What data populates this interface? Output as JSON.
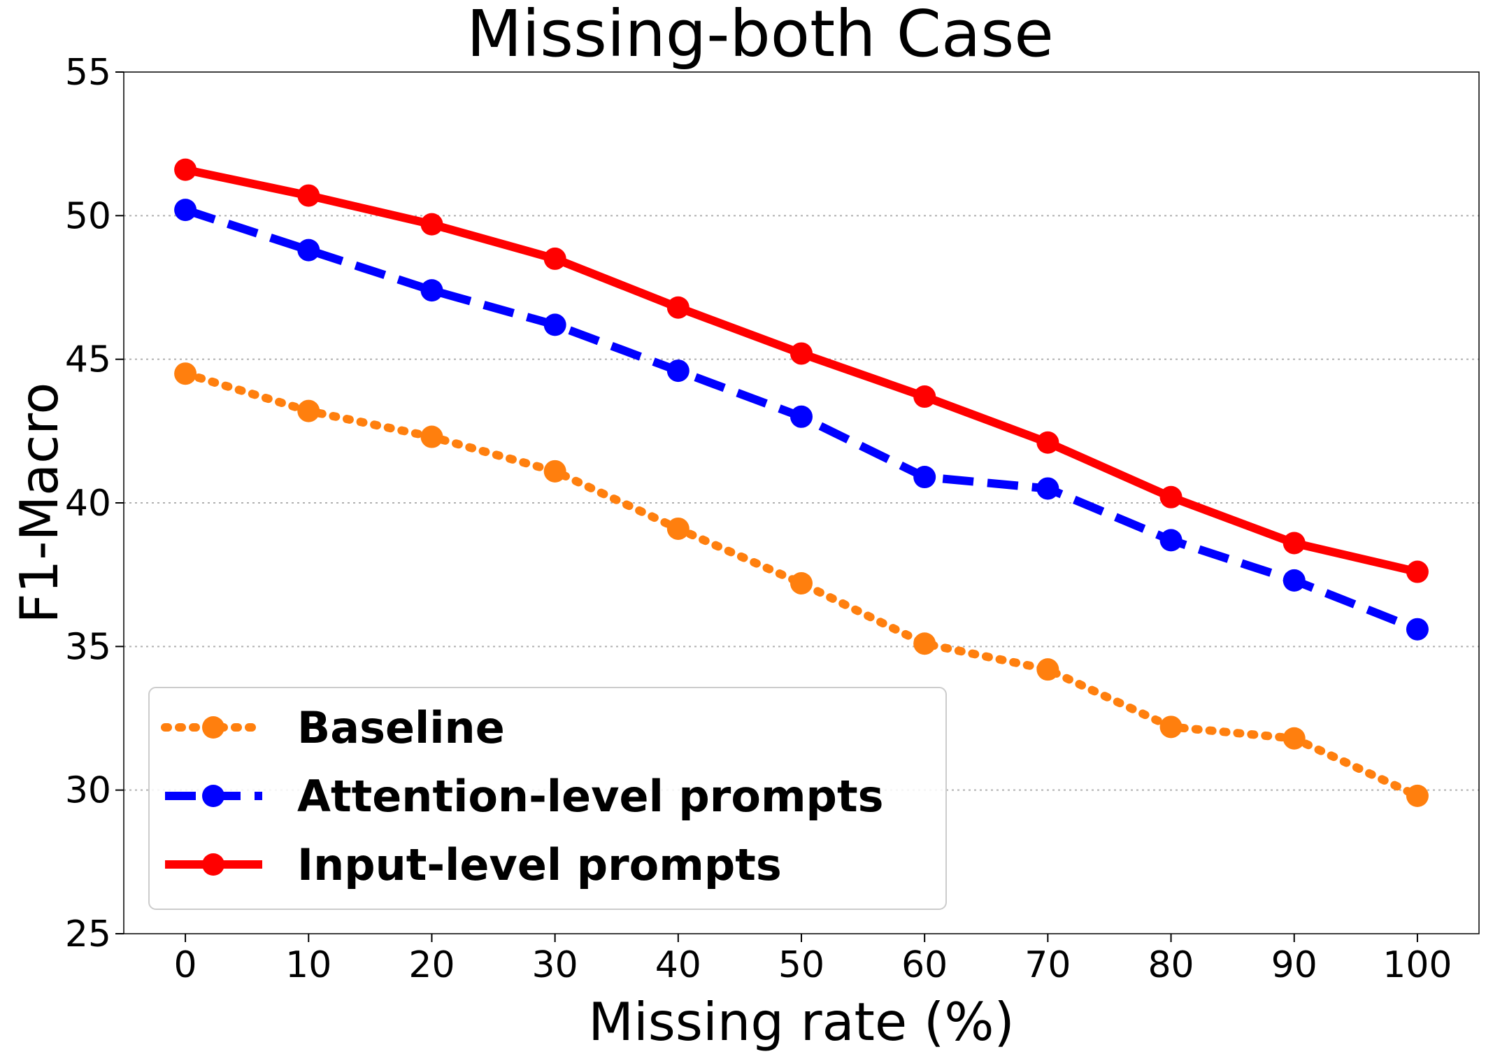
{
  "chart_data": {
    "type": "line",
    "title": "Missing-both Case",
    "xlabel": "Missing rate (%)",
    "ylabel": "F1-Macro",
    "x": [
      0,
      10,
      20,
      30,
      40,
      50,
      60,
      70,
      80,
      90,
      100
    ],
    "xticks": [
      "0",
      "10",
      "20",
      "30",
      "40",
      "50",
      "60",
      "70",
      "80",
      "90",
      "100"
    ],
    "yticks": [
      "25",
      "30",
      "35",
      "40",
      "45",
      "50",
      "55"
    ],
    "ylim": [
      25,
      55
    ],
    "xlim": [
      -5,
      105
    ],
    "grid": "y-dotted",
    "legend_position": "lower-left",
    "series": [
      {
        "name": "Baseline",
        "color": "#ff7f0e",
        "style": "dotted",
        "values": [
          44.5,
          43.2,
          42.3,
          41.1,
          39.1,
          37.2,
          35.1,
          34.2,
          32.2,
          31.8,
          29.8
        ]
      },
      {
        "name": "Attention-level prompts",
        "color": "#0000ff",
        "style": "dashed",
        "values": [
          50.2,
          48.8,
          47.4,
          46.2,
          44.6,
          43.0,
          40.9,
          40.5,
          38.7,
          37.3,
          35.6
        ]
      },
      {
        "name": "Input-level prompts",
        "color": "#ff0000",
        "style": "solid",
        "values": [
          51.6,
          50.7,
          49.7,
          48.5,
          46.8,
          45.2,
          43.7,
          42.1,
          40.2,
          38.6,
          37.6
        ]
      }
    ]
  }
}
